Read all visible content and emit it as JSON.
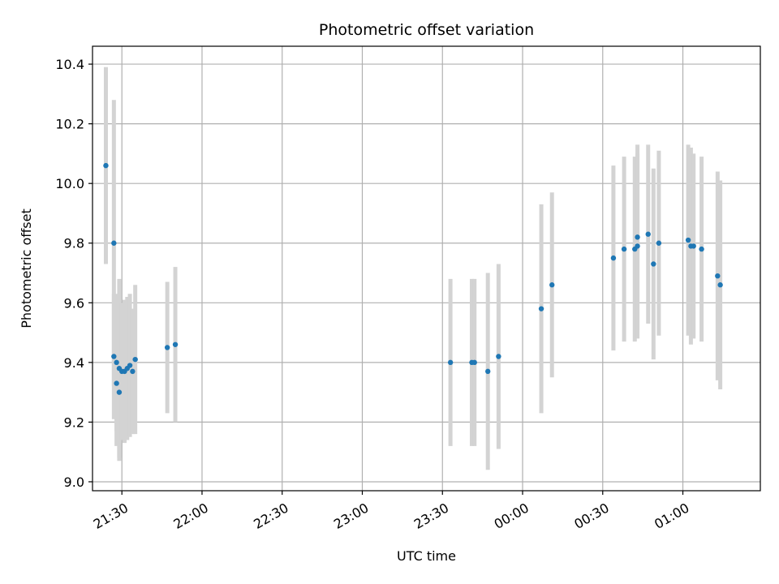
{
  "chart_data": {
    "type": "scatter",
    "title": "Photometric offset variation",
    "xlabel": "UTC time",
    "ylabel": "Photometric offset",
    "x_tick_labels": [
      "21:30",
      "22:00",
      "22:30",
      "23:00",
      "23:30",
      "00:00",
      "00:30",
      "01:00"
    ],
    "y_tick_labels": [
      "9.0",
      "9.2",
      "9.4",
      "9.6",
      "9.8",
      "10.0",
      "10.2",
      "10.4"
    ],
    "xlim": [
      "21:19",
      "01:29"
    ],
    "ylim": [
      8.97,
      10.46
    ],
    "grid": true,
    "colors": {
      "point": "#1f77b4",
      "errorbar": "#d3d3d3",
      "grid": "#b0b0b0"
    },
    "series": [
      {
        "points": [
          {
            "x": "21:24",
            "y": 10.06,
            "yerr": 0.33
          },
          {
            "x": "21:27",
            "y": 9.8,
            "yerr": 0.48
          },
          {
            "x": "21:27",
            "y": 9.42,
            "yerr": 0.21
          },
          {
            "x": "21:28",
            "y": 9.4,
            "yerr": 0.23
          },
          {
            "x": "21:28",
            "y": 9.33,
            "yerr": 0.21
          },
          {
            "x": "21:29",
            "y": 9.3,
            "yerr": 0.23
          },
          {
            "x": "21:29",
            "y": 9.38,
            "yerr": 0.3
          },
          {
            "x": "21:30",
            "y": 9.37,
            "yerr": 0.23
          },
          {
            "x": "21:31",
            "y": 9.37,
            "yerr": 0.24
          },
          {
            "x": "21:32",
            "y": 9.38,
            "yerr": 0.24
          },
          {
            "x": "21:33",
            "y": 9.39,
            "yerr": 0.24
          },
          {
            "x": "21:34",
            "y": 9.37,
            "yerr": 0.21
          },
          {
            "x": "21:35",
            "y": 9.41,
            "yerr": 0.25
          },
          {
            "x": "21:47",
            "y": 9.45,
            "yerr": 0.22
          },
          {
            "x": "21:50",
            "y": 9.46,
            "yerr": 0.26
          },
          {
            "x": "23:33",
            "y": 9.4,
            "yerr": 0.28
          },
          {
            "x": "23:41",
            "y": 9.4,
            "yerr": 0.28
          },
          {
            "x": "23:42",
            "y": 9.4,
            "yerr": 0.28
          },
          {
            "x": "23:47",
            "y": 9.37,
            "yerr": 0.33
          },
          {
            "x": "23:51",
            "y": 9.42,
            "yerr": 0.31
          },
          {
            "x": "00:07",
            "y": 9.58,
            "yerr": 0.35
          },
          {
            "x": "00:11",
            "y": 9.66,
            "yerr": 0.31
          },
          {
            "x": "00:34",
            "y": 9.75,
            "yerr": 0.31
          },
          {
            "x": "00:38",
            "y": 9.78,
            "yerr": 0.31
          },
          {
            "x": "00:42",
            "y": 9.78,
            "yerr": 0.31
          },
          {
            "x": "00:43",
            "y": 9.79,
            "yerr": 0.31
          },
          {
            "x": "00:43",
            "y": 9.82,
            "yerr": 0.31
          },
          {
            "x": "00:47",
            "y": 9.83,
            "yerr": 0.3
          },
          {
            "x": "00:49",
            "y": 9.73,
            "yerr": 0.32
          },
          {
            "x": "00:51",
            "y": 9.8,
            "yerr": 0.31
          },
          {
            "x": "01:02",
            "y": 9.81,
            "yerr": 0.32
          },
          {
            "x": "01:03",
            "y": 9.79,
            "yerr": 0.33
          },
          {
            "x": "01:04",
            "y": 9.79,
            "yerr": 0.31
          },
          {
            "x": "01:07",
            "y": 9.78,
            "yerr": 0.31
          },
          {
            "x": "01:13",
            "y": 9.69,
            "yerr": 0.35
          },
          {
            "x": "01:14",
            "y": 9.66,
            "yerr": 0.35
          }
        ]
      }
    ]
  }
}
